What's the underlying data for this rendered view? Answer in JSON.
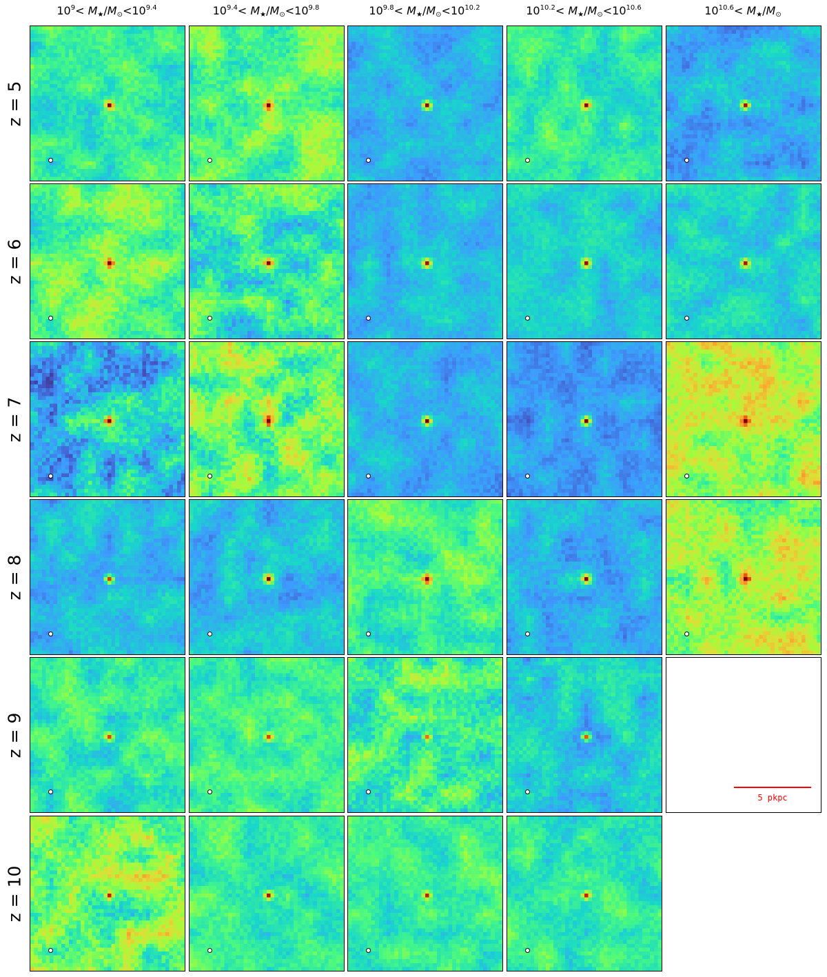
{
  "chart_data": {
    "type": "heatmap",
    "column_titles": [
      {
        "base_lo": "10",
        "exp_lo": "9",
        "mid_a": "< ",
        "M": "M",
        "star": "★",
        "slash": "/",
        "Msun": "M",
        "sun": "⊙",
        "mid_b": "<",
        "base_hi": "10",
        "exp_hi": "9.4"
      },
      {
        "base_lo": "10",
        "exp_lo": "9.4",
        "mid_a": "< ",
        "M": "M",
        "star": "★",
        "slash": "/",
        "Msun": "M",
        "sun": "⊙",
        "mid_b": "<",
        "base_hi": "10",
        "exp_hi": "9.8"
      },
      {
        "base_lo": "10",
        "exp_lo": "9.8",
        "mid_a": "< ",
        "M": "M",
        "star": "★",
        "slash": "/",
        "Msun": "M",
        "sun": "⊙",
        "mid_b": "<",
        "base_hi": "10",
        "exp_hi": "10.2"
      },
      {
        "base_lo": "10",
        "exp_lo": "10.2",
        "mid_a": "< ",
        "M": "M",
        "star": "★",
        "slash": "/",
        "Msun": "M",
        "sun": "⊙",
        "mid_b": "<",
        "base_hi": "10",
        "exp_hi": "10.6"
      },
      {
        "base_lo": "10",
        "exp_lo": "10.6",
        "mid_a": "< ",
        "M": "M",
        "star": "★",
        "slash": "/",
        "Msun": "M",
        "sun": "⊙",
        "mid_b": "",
        "base_hi": "",
        "exp_hi": ""
      }
    ],
    "row_labels": [
      "z = 5",
      "z = 6",
      "z = 7",
      "z = 8",
      "z = 9",
      "z = 10"
    ],
    "scale_bar_label": "5 pkpc",
    "colormap": [
      "#30123b",
      "#4454c4",
      "#3e9bfe",
      "#18d6cb",
      "#46f884",
      "#a2fc3c",
      "#e1dd37",
      "#fe9b2d",
      "#ef5911",
      "#c22402",
      "#7a0403"
    ],
    "panels": [
      [
        {
          "bg": 0.36,
          "noise": 0.1,
          "peak": 0.95
        },
        {
          "bg": 0.42,
          "noise": 0.12,
          "peak": 0.97
        },
        {
          "bg": 0.24,
          "noise": 0.07,
          "peak": 0.95
        },
        {
          "bg": 0.36,
          "noise": 0.09,
          "peak": 0.95
        },
        {
          "bg": 0.24,
          "noise": 0.08,
          "peak": 0.93
        }
      ],
      [
        {
          "bg": 0.42,
          "noise": 0.12,
          "peak": 0.93
        },
        {
          "bg": 0.36,
          "noise": 0.14,
          "peak": 0.93
        },
        {
          "bg": 0.26,
          "noise": 0.07,
          "peak": 0.93
        },
        {
          "bg": 0.28,
          "noise": 0.07,
          "peak": 0.95
        },
        {
          "bg": 0.3,
          "noise": 0.08,
          "peak": 0.93
        }
      ],
      [
        {
          "bg": 0.28,
          "noise": 0.15,
          "peak": 0.93
        },
        {
          "bg": 0.44,
          "noise": 0.16,
          "peak": 0.95
        },
        {
          "bg": 0.24,
          "noise": 0.07,
          "peak": 0.93
        },
        {
          "bg": 0.2,
          "noise": 0.07,
          "peak": 0.95
        },
        {
          "bg": 0.52,
          "noise": 0.14,
          "peak": 0.95
        }
      ],
      [
        {
          "bg": 0.26,
          "noise": 0.08,
          "peak": 0.93
        },
        {
          "bg": 0.26,
          "noise": 0.08,
          "peak": 0.93
        },
        {
          "bg": 0.38,
          "noise": 0.1,
          "peak": 0.95
        },
        {
          "bg": 0.25,
          "noise": 0.08,
          "peak": 0.93
        },
        {
          "bg": 0.5,
          "noise": 0.14,
          "peak": 0.93
        }
      ],
      [
        {
          "bg": 0.36,
          "noise": 0.1,
          "peak": 0.95
        },
        {
          "bg": 0.38,
          "noise": 0.09,
          "peak": 0.95
        },
        {
          "bg": 0.38,
          "noise": 0.14,
          "peak": 0.95
        },
        {
          "bg": 0.28,
          "noise": 0.09,
          "peak": 0.93
        },
        null
      ],
      [
        {
          "bg": 0.46,
          "noise": 0.16,
          "peak": 0.95
        },
        {
          "bg": 0.36,
          "noise": 0.09,
          "peak": 0.97
        },
        {
          "bg": 0.38,
          "noise": 0.09,
          "peak": 0.95
        },
        {
          "bg": 0.36,
          "noise": 0.09,
          "peak": 0.95
        }
      ]
    ]
  }
}
